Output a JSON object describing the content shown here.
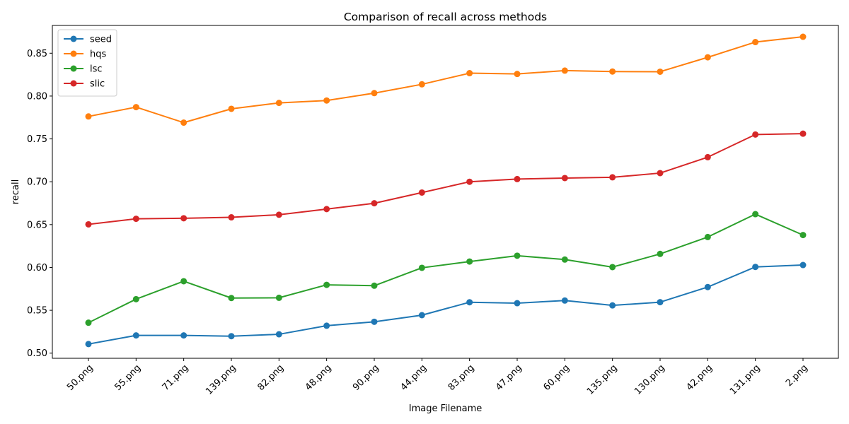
{
  "chart_data": {
    "type": "line",
    "title": "Comparison of recall across methods",
    "xlabel": "Image Filename",
    "ylabel": "recall",
    "categories": [
      "50.png",
      "55.png",
      "71.png",
      "139.png",
      "82.png",
      "48.png",
      "90.png",
      "44.png",
      "83.png",
      "47.png",
      "60.png",
      "135.png",
      "130.png",
      "42.png",
      "131.png",
      "2.png"
    ],
    "ylim": [
      0.494,
      0.8824
    ],
    "yticks": [
      0.5,
      0.55,
      0.6,
      0.65,
      0.7,
      0.75,
      0.8,
      0.85
    ],
    "ytick_labels": [
      "0.50",
      "0.55",
      "0.60",
      "0.65",
      "0.70",
      "0.75",
      "0.80",
      "0.85"
    ],
    "grid": false,
    "legend_position": "top-left",
    "series": [
      {
        "name": "seed",
        "color": "#1f77b4",
        "values": [
          0.5106,
          0.5207,
          0.5207,
          0.5198,
          0.522,
          0.532,
          0.5366,
          0.5443,
          0.5594,
          0.5583,
          0.5614,
          0.5557,
          0.5595,
          0.5771,
          0.6006,
          0.6028
        ]
      },
      {
        "name": "hqs",
        "color": "#ff7f0e",
        "values": [
          0.7762,
          0.7871,
          0.769,
          0.7851,
          0.792,
          0.7948,
          0.8034,
          0.8137,
          0.8267,
          0.8258,
          0.8297,
          0.8286,
          0.8284,
          0.8452,
          0.863,
          0.8692
        ]
      },
      {
        "name": "lsc",
        "color": "#2ca02c",
        "values": [
          0.5355,
          0.563,
          0.5839,
          0.5643,
          0.5646,
          0.5797,
          0.5787,
          0.5996,
          0.6069,
          0.6137,
          0.6092,
          0.6004,
          0.6158,
          0.6355,
          0.6622,
          0.6378
        ]
      },
      {
        "name": "slic",
        "color": "#d62728",
        "values": [
          0.6503,
          0.6568,
          0.6574,
          0.6585,
          0.6615,
          0.6681,
          0.6749,
          0.6874,
          0.7,
          0.7031,
          0.7043,
          0.7052,
          0.7101,
          0.7287,
          0.7551,
          0.7561
        ]
      }
    ]
  }
}
